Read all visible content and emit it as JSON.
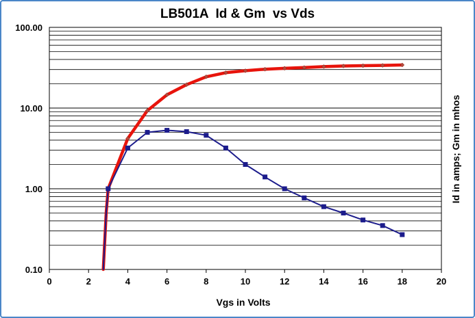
{
  "chart_data": {
    "type": "line",
    "title": "LB501A  Id & Gm  vs Vds",
    "xlabel": "Vgs  in Volts",
    "ylabel": "Id in amps;  Gm in mhos",
    "xlim": [
      0,
      20
    ],
    "ylim": [
      0.1,
      100
    ],
    "yscale": "log",
    "x_ticks": [
      "0",
      "2",
      "4",
      "6",
      "8",
      "10",
      "12",
      "14",
      "16",
      "18",
      "20"
    ],
    "y_ticks": [
      "0.10",
      "1.00",
      "10.00",
      "100.00"
    ],
    "grid": "horizontal, log minor",
    "legend": "none",
    "series": [
      {
        "color": "#e8140c",
        "marker": "diamond",
        "x": [
          2.75,
          2.9,
          3,
          4,
          5,
          6,
          7,
          8,
          9,
          10,
          11,
          12,
          13,
          14,
          15,
          16,
          17,
          18
        ],
        "y": [
          0.1,
          0.5,
          1.0,
          4.2,
          9.3,
          14.6,
          19.5,
          24.4,
          27.4,
          29.0,
          30.3,
          31.1,
          31.8,
          32.6,
          33.2,
          33.5,
          33.8,
          34.2
        ]
      },
      {
        "color": "#1c1c8c",
        "marker": "square",
        "x": [
          2.75,
          2.9,
          3,
          4,
          5,
          6,
          7,
          8,
          9,
          10,
          11,
          12,
          13,
          14,
          15,
          16,
          17,
          18
        ],
        "y": [
          0.1,
          0.5,
          1.0,
          3.2,
          5.0,
          5.3,
          5.1,
          4.6,
          3.2,
          2.0,
          1.4,
          1.0,
          0.77,
          0.6,
          0.5,
          0.41,
          0.35,
          0.27
        ]
      }
    ]
  }
}
